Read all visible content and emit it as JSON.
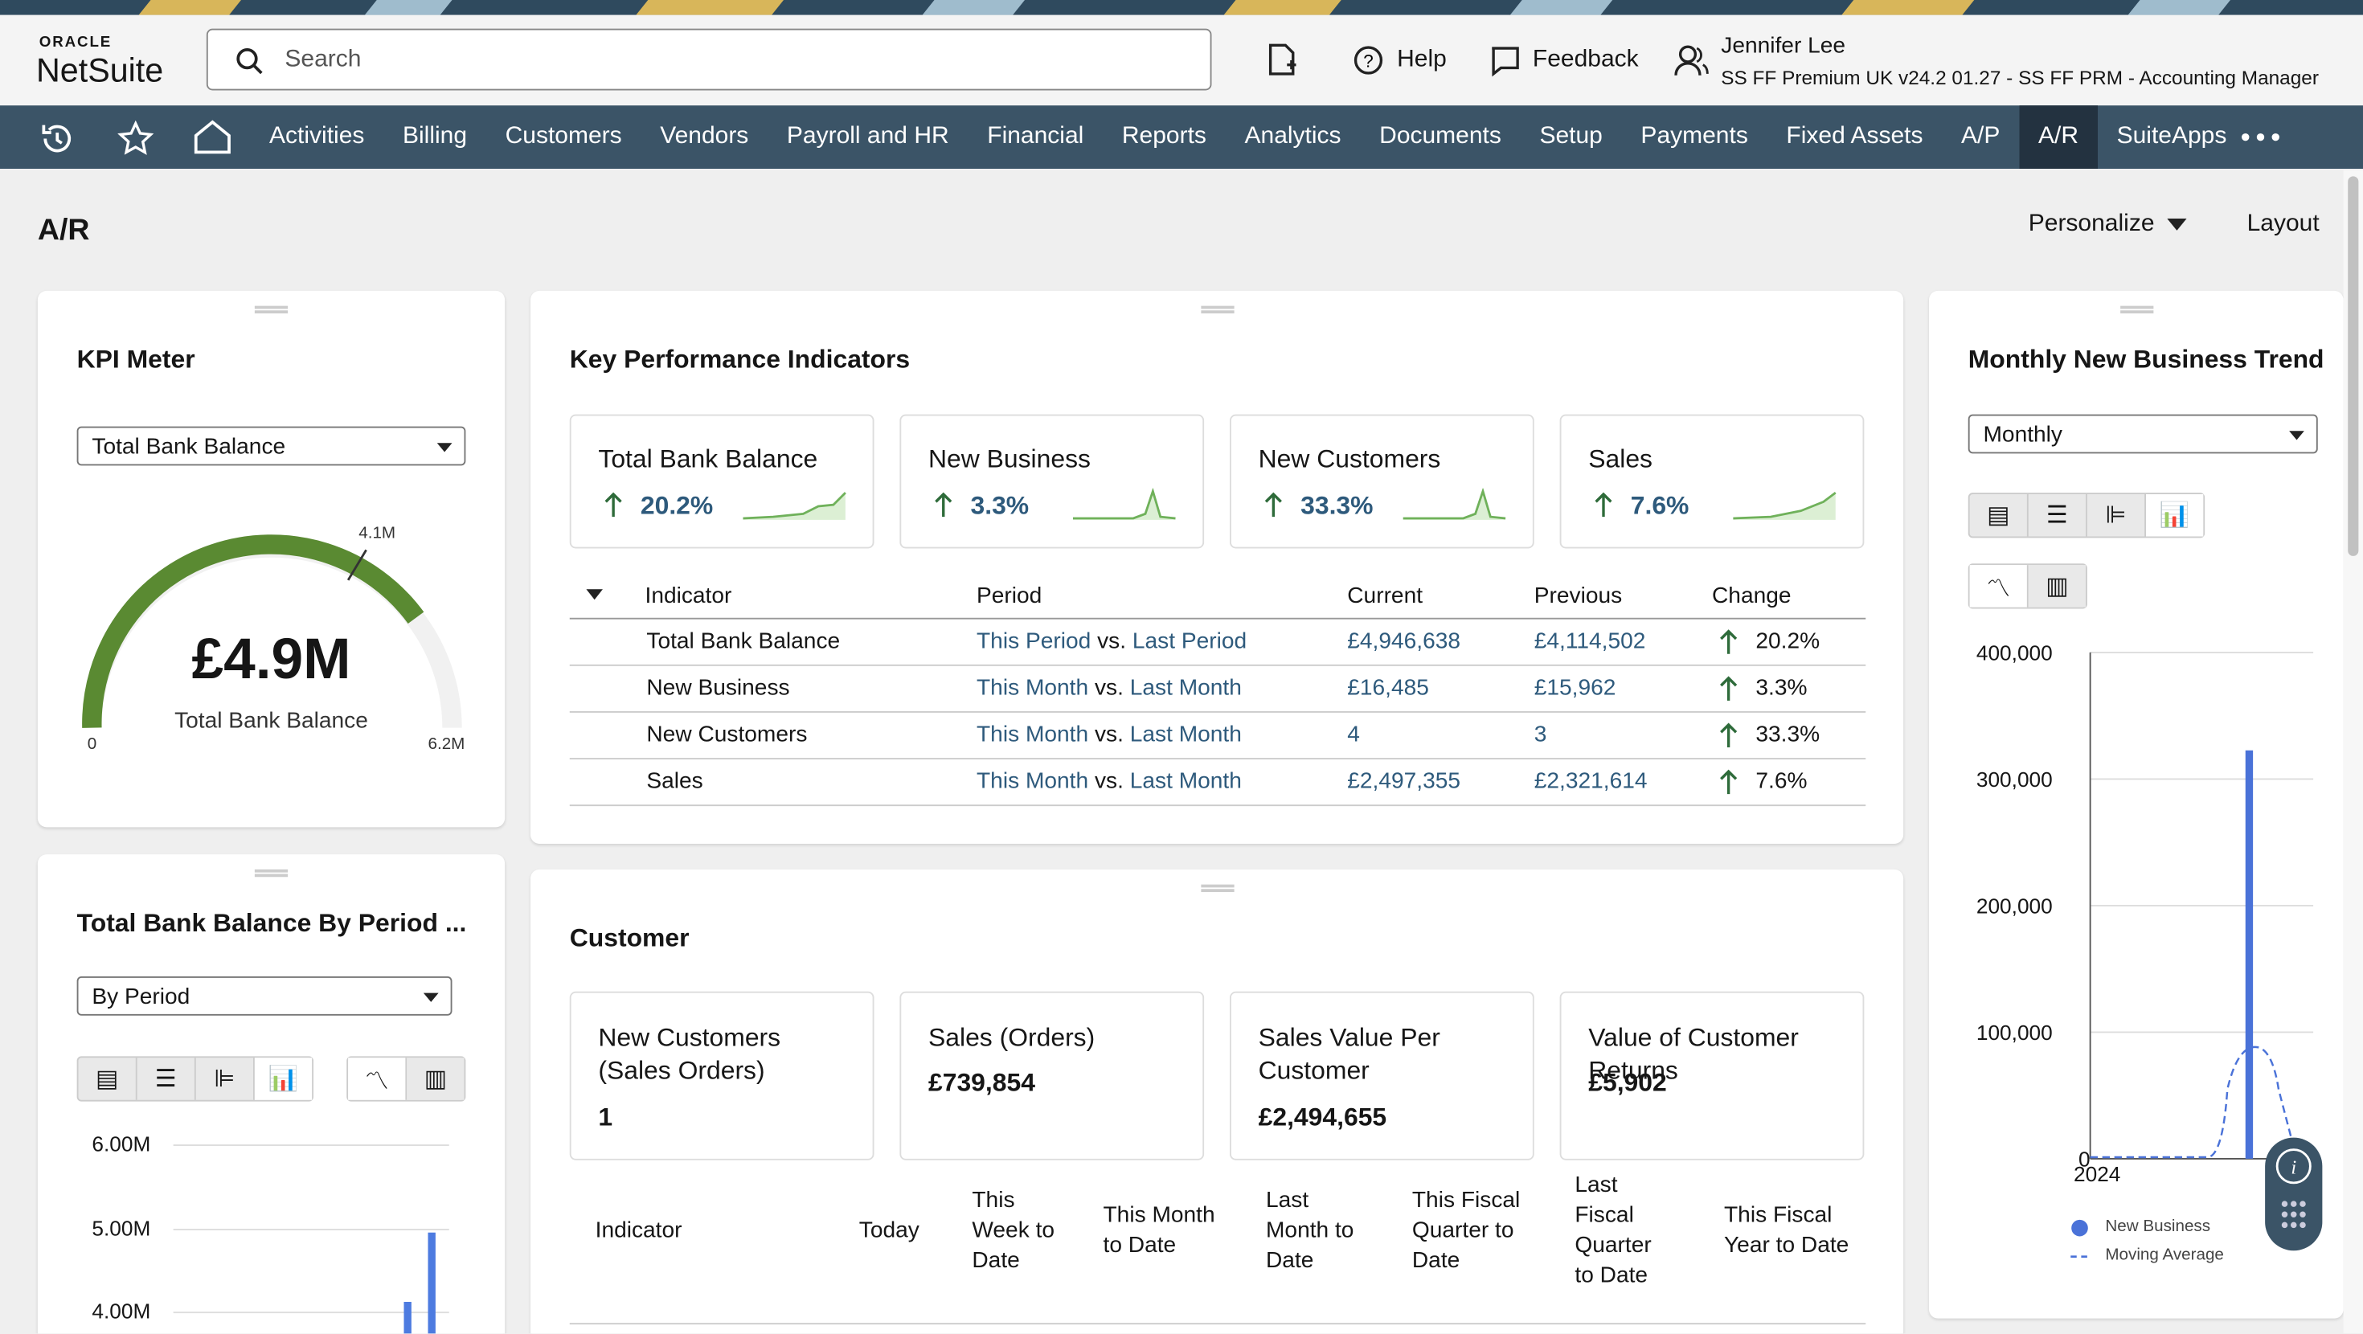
{
  "header": {
    "brand_top": "ORACLE",
    "brand": "NetSuite",
    "search_placeholder": "Search",
    "help": "Help",
    "feedback": "Feedback",
    "user_name": "Jennifer Lee",
    "user_role": "SS FF Premium UK v24.2 01.27 - SS FF PRM - Accounting Manager"
  },
  "nav": {
    "items": [
      "Activities",
      "Billing",
      "Customers",
      "Vendors",
      "Payroll and HR",
      "Financial",
      "Reports",
      "Analytics",
      "Documents",
      "Setup",
      "Payments",
      "Fixed Assets",
      "A/P",
      "A/R",
      "SuiteApps"
    ]
  },
  "page": {
    "title": "A/R",
    "personalize": "Personalize",
    "layout": "Layout"
  },
  "kpi_meter": {
    "title": "KPI Meter",
    "select": "Total Bank Balance",
    "value_label": "£4.9M",
    "caption": "Total Bank Balance",
    "min_label": "0",
    "max_label": "6.2M",
    "marker_label": "4.1M"
  },
  "bank_by_period": {
    "title": "Total Bank Balance By Period ...",
    "select": "By Period",
    "yticks": [
      "6.00M",
      "5.00M",
      "4.00M"
    ]
  },
  "kpis": {
    "title": "Key Performance Indicators",
    "cards": [
      {
        "name": "Total Bank Balance",
        "change": "20.2%"
      },
      {
        "name": "New Business",
        "change": "3.3%"
      },
      {
        "name": "New Customers",
        "change": "33.3%"
      },
      {
        "name": "Sales",
        "change": "7.6%"
      }
    ],
    "table": {
      "headers": [
        "Indicator",
        "Period",
        "Current",
        "Previous",
        "Change"
      ],
      "rows": [
        {
          "indicator": "Total Bank Balance",
          "period_this": "This Period",
          "vs": "vs.",
          "period_last": "Last Period",
          "current": "£4,946,638",
          "previous": "£4,114,502",
          "change": "20.2%"
        },
        {
          "indicator": "New Business",
          "period_this": "This Month",
          "vs": "vs.",
          "period_last": "Last Month",
          "current": "£16,485",
          "previous": "£15,962",
          "change": "3.3%"
        },
        {
          "indicator": "New Customers",
          "period_this": "This Month",
          "vs": "vs.",
          "period_last": "Last Month",
          "current": "4",
          "previous": "3",
          "change": "33.3%"
        },
        {
          "indicator": "Sales",
          "period_this": "This Month",
          "vs": "vs.",
          "period_last": "Last Month",
          "current": "£2,497,355",
          "previous": "£2,321,614",
          "change": "7.6%"
        }
      ]
    }
  },
  "customer": {
    "title": "Customer",
    "cards": [
      {
        "name": "New Customers (Sales Orders)",
        "value": "1"
      },
      {
        "name": "Sales (Orders)",
        "value": "£739,854"
      },
      {
        "name": "Sales Value Per Customer",
        "value": "£2,494,655"
      },
      {
        "name": "Value of Customer Returns",
        "value": "£5,902"
      }
    ],
    "table": {
      "headers": [
        "Indicator",
        "Today",
        "This Week to Date",
        "This Month to Date",
        "Last Month to Date",
        "This Fiscal Quarter to Date",
        "Last Fiscal Quarter to Date",
        "This Fiscal Year to Date"
      ]
    }
  },
  "trend": {
    "title": "Monthly New Business Trend",
    "select": "Monthly",
    "yticks": [
      "400,000",
      "300,000",
      "200,000",
      "100,000",
      "0"
    ],
    "x_label": "2024",
    "legend": [
      "New Business",
      "Moving Average"
    ]
  }
}
